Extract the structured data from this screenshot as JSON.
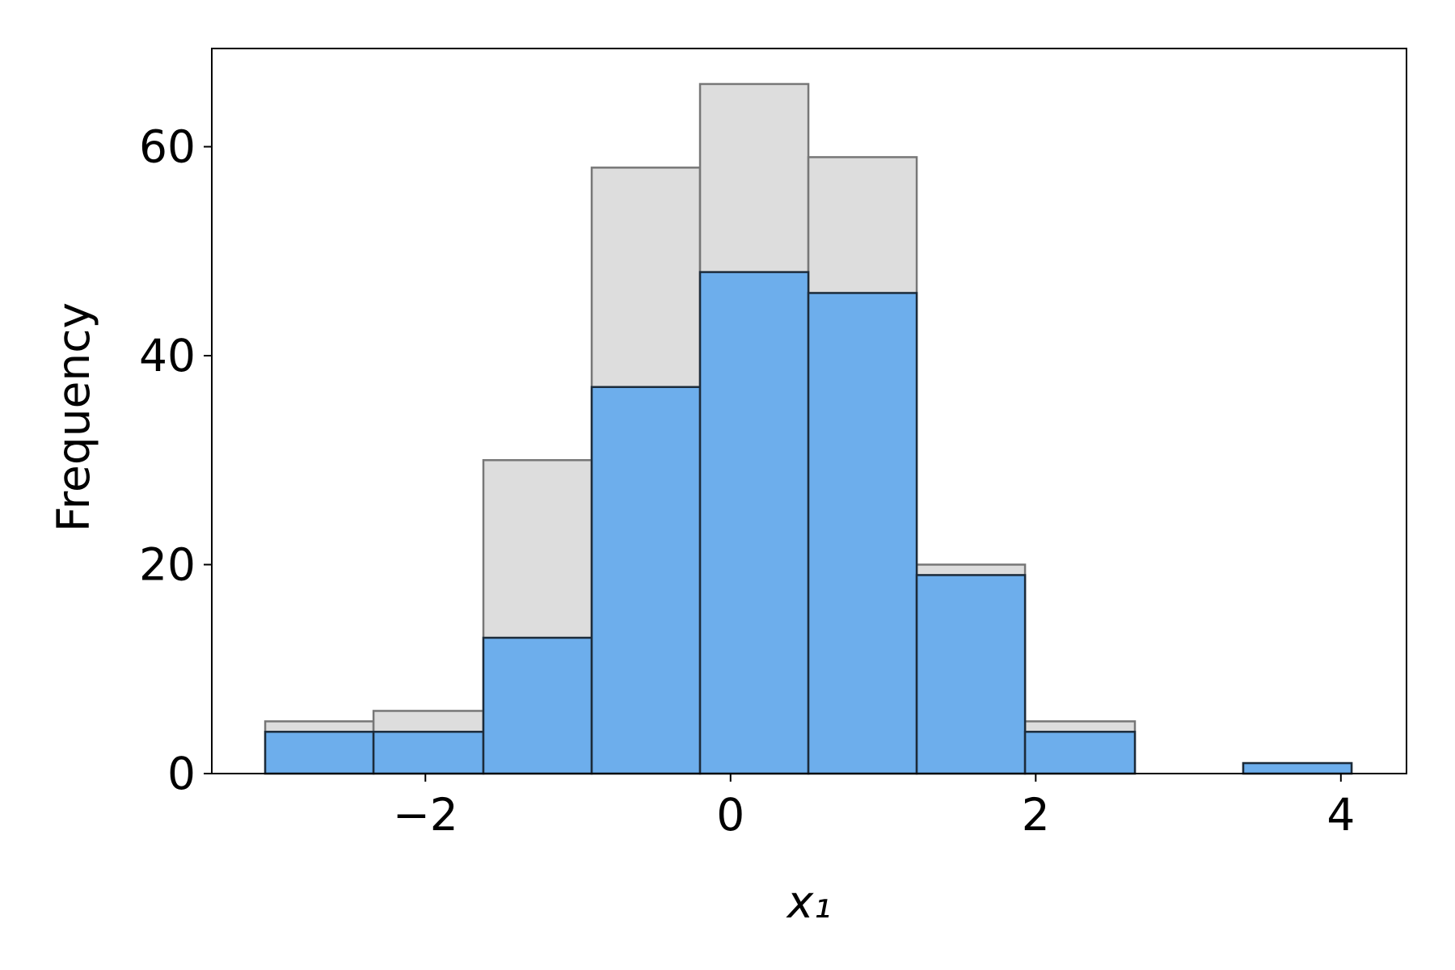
{
  "chart_data": {
    "type": "histogram",
    "xlabel": "x₁",
    "ylabel": "Frequency",
    "bins": [
      -3.05,
      -2.34,
      -1.62,
      -0.91,
      -0.2,
      0.51,
      1.22,
      1.93,
      2.65,
      3.36,
      4.07
    ],
    "series": [
      {
        "color": "#dddddd",
        "edgecolor": "#777777",
        "values": [
          5,
          6,
          30,
          58,
          66,
          59,
          20,
          5,
          0,
          1
        ]
      },
      {
        "color": "#6daeec",
        "edgecolor": "#1c2b3a",
        "values": [
          4,
          4,
          13,
          37,
          48,
          46,
          19,
          4,
          0,
          1
        ]
      }
    ],
    "xlim": [
      -3.4,
      4.43
    ],
    "xticks": [
      {
        "value": -2,
        "label": "−2"
      },
      0,
      2,
      4
    ],
    "ylim": [
      0,
      69.4
    ],
    "yticks": [
      0,
      20,
      40,
      60
    ]
  }
}
